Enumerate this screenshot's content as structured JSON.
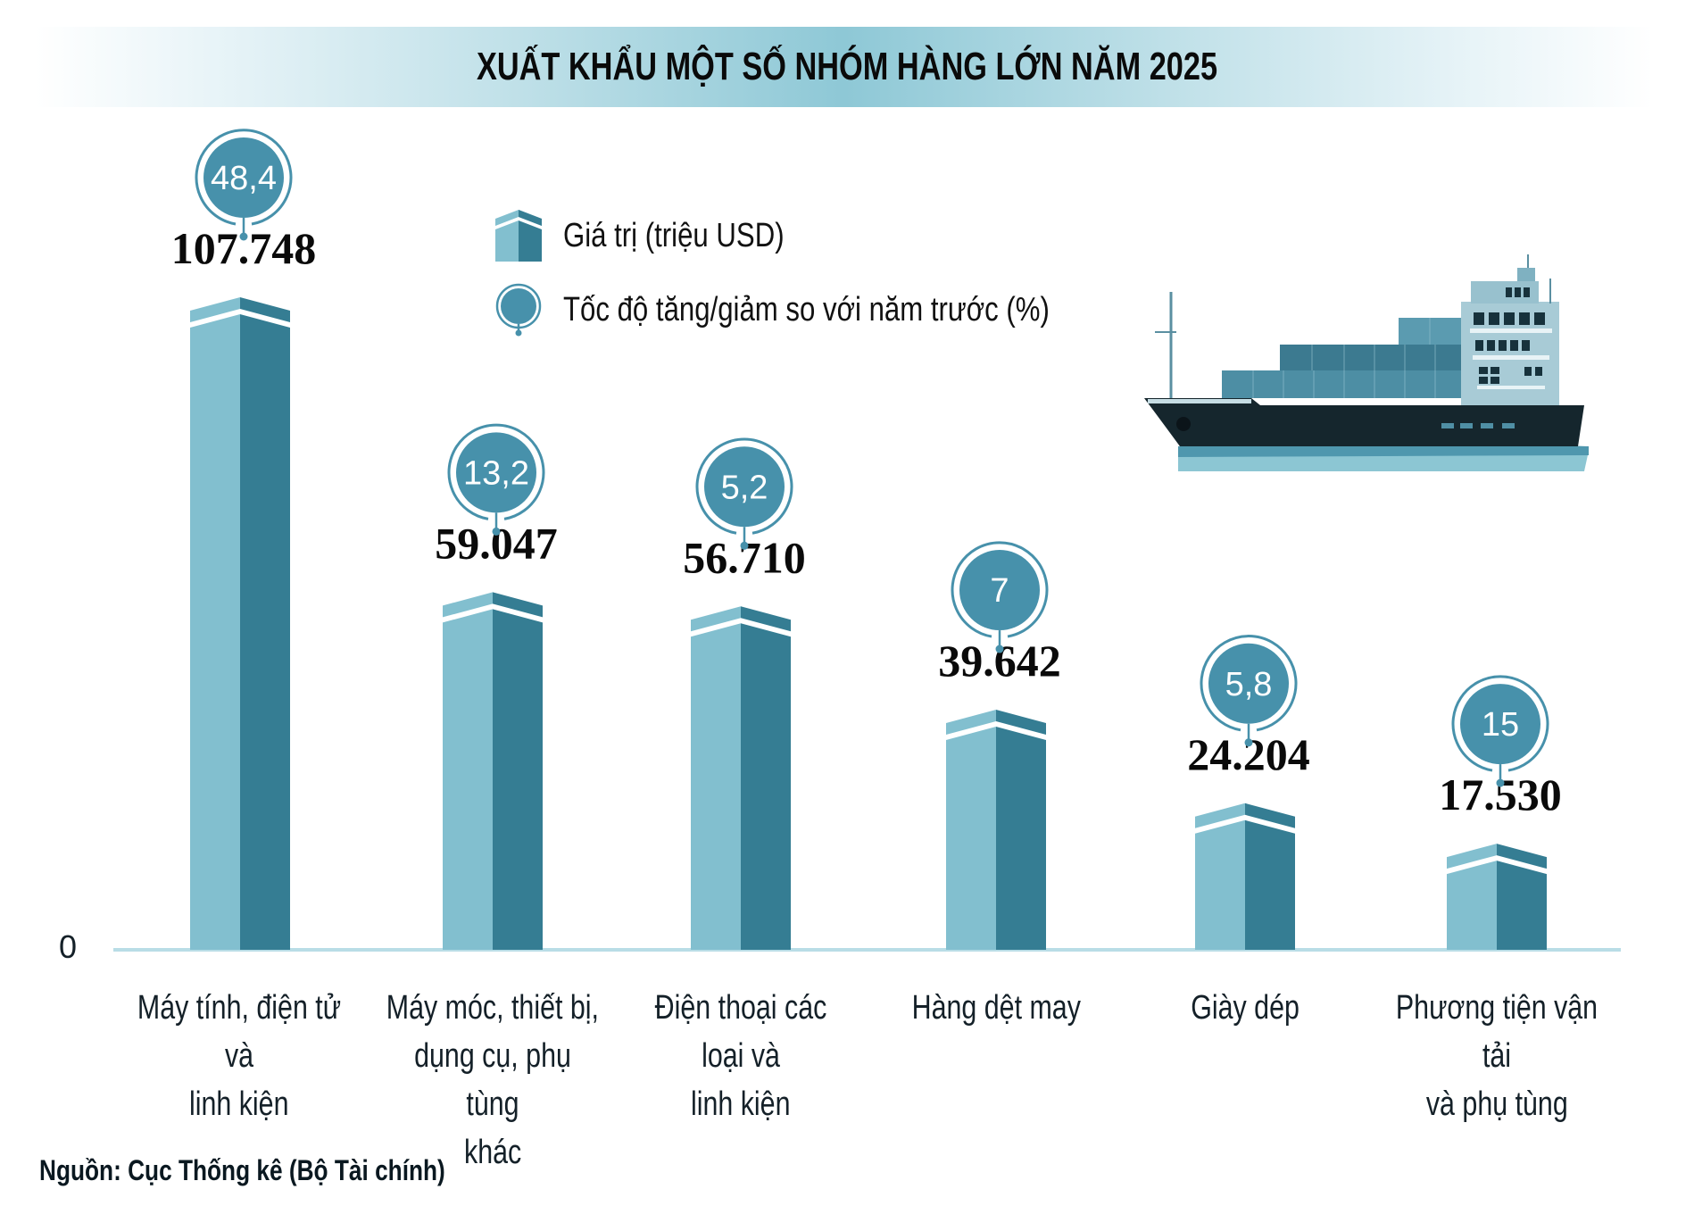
{
  "chart_data": {
    "type": "bar",
    "title": "XUẤT KHẨU MỘT SỐ NHÓM HÀNG LỚN NĂM 2025",
    "categories": [
      "Máy tính, điện tử và linh kiện",
      "Máy móc, thiết bị, dụng cụ, phụ tùng khác",
      "Điện thoại các loại và linh kiện",
      "Hàng dệt may",
      "Giày dép",
      "Phương tiện vận tải và phụ tùng"
    ],
    "category_lines": [
      [
        "Máy tính, điện tử và",
        "linh kiện"
      ],
      [
        "Máy móc, thiết bị,",
        "dụng cụ, phụ tùng",
        "khác"
      ],
      [
        "Điện thoại các loại và",
        "linh kiện"
      ],
      [
        "Hàng dệt may"
      ],
      [
        "Giày dép"
      ],
      [
        "Phương tiện vận tải",
        "và phụ tùng"
      ]
    ],
    "series": [
      {
        "name": "Giá trị (triệu USD)",
        "values": [
          107748,
          59047,
          56710,
          39642,
          24204,
          17530
        ],
        "labels": [
          "107.748",
          "59.047",
          "56.710",
          "39.642",
          "24.204",
          "17.530"
        ]
      },
      {
        "name": "Tốc độ tăng/giảm so với năm trước (%)",
        "values": [
          48.4,
          13.2,
          5.2,
          7,
          5.8,
          15
        ],
        "labels": [
          "48,4",
          "13,2",
          "5,2",
          "7",
          "5,8",
          "15"
        ]
      }
    ],
    "xlabel": "",
    "ylabel": "",
    "ylim": [
      0,
      110000
    ],
    "y_tick_labels": [
      "0"
    ],
    "grid": false,
    "legend": "top-center"
  },
  "colors": {
    "bar_light": "#82bfcf",
    "bar_dark": "#357d93",
    "badge": "#4791ab",
    "axis": "#b9dde6",
    "banner": "#8ec8d6"
  },
  "source": "Nguồn: Cục Thống kê (Bộ Tài chính)",
  "illustration": "container-ship-icon"
}
